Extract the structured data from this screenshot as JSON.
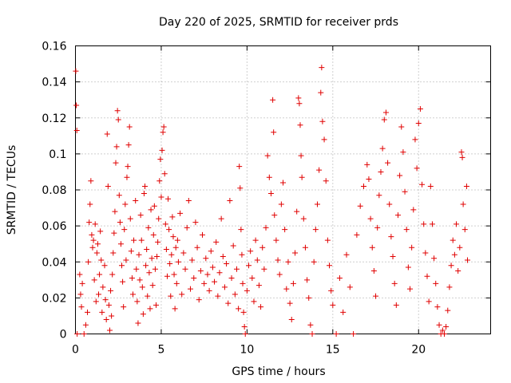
{
  "chart_data": {
    "type": "scatter",
    "title": "Day 220 of 2025, SRMTID for receiver prds",
    "xlabel": "GPS time / hours",
    "ylabel": "SRMTID / TECUs",
    "xlim": [
      0,
      24.2
    ],
    "ylim": [
      0,
      0.16
    ],
    "grid": true,
    "legend": "none",
    "x_ticks": [
      0,
      5,
      10,
      15,
      20
    ],
    "x_tick_labels": [
      "0",
      "5",
      "10",
      "15",
      "20"
    ],
    "y_ticks": [
      0,
      0.02,
      0.04,
      0.06,
      0.08,
      0.1,
      0.12,
      0.14,
      0.16
    ],
    "y_tick_labels": [
      "0",
      "0.02",
      "0.04",
      "0.06",
      "0.08",
      "0.1",
      "0.12",
      "0.14",
      "0.16"
    ],
    "series": [
      {
        "name": "SRMTID",
        "color": "#e00000",
        "marker": "plus",
        "points": [
          [
            0.02,
            0.146
          ],
          [
            0.05,
            0.127
          ],
          [
            0.08,
            0.113
          ],
          [
            0.1,
            0.0
          ],
          [
            0.25,
            0.033
          ],
          [
            0.3,
            0.022
          ],
          [
            0.35,
            0.015
          ],
          [
            0.4,
            0.028
          ],
          [
            0.5,
            0.0
          ],
          [
            0.6,
            0.005
          ],
          [
            0.7,
            0.012
          ],
          [
            0.75,
            0.04
          ],
          [
            0.8,
            0.062
          ],
          [
            0.85,
            0.072
          ],
          [
            0.9,
            0.085
          ],
          [
            0.95,
            0.055
          ],
          [
            1.0,
            0.048
          ],
          [
            1.05,
            0.052
          ],
          [
            1.1,
            0.03
          ],
          [
            1.15,
            0.061
          ],
          [
            1.2,
            0.018
          ],
          [
            1.25,
            0.045
          ],
          [
            1.3,
            0.05
          ],
          [
            1.35,
            0.022
          ],
          [
            1.4,
            0.033
          ],
          [
            1.45,
            0.057
          ],
          [
            1.5,
            0.041
          ],
          [
            1.55,
            0.012
          ],
          [
            1.6,
            0.026
          ],
          [
            1.7,
            0.038
          ],
          [
            1.75,
            0.019
          ],
          [
            1.8,
            0.008
          ],
          [
            1.85,
            0.111
          ],
          [
            1.9,
            0.082
          ],
          [
            1.95,
            0.016
          ],
          [
            2.0,
            0.002
          ],
          [
            2.05,
            0.024
          ],
          [
            2.1,
            0.01
          ],
          [
            2.15,
            0.033
          ],
          [
            2.2,
            0.045
          ],
          [
            2.25,
            0.056
          ],
          [
            2.3,
            0.068
          ],
          [
            2.35,
            0.095
          ],
          [
            2.4,
            0.104
          ],
          [
            2.45,
            0.124
          ],
          [
            2.5,
            0.119
          ],
          [
            2.55,
            0.077
          ],
          [
            2.6,
            0.062
          ],
          [
            2.65,
            0.05
          ],
          [
            2.7,
            0.038
          ],
          [
            2.75,
            0.029
          ],
          [
            2.8,
            0.015
          ],
          [
            2.85,
            0.058
          ],
          [
            2.9,
            0.072
          ],
          [
            2.95,
            0.041
          ],
          [
            3.0,
            0.087
          ],
          [
            3.05,
            0.093
          ],
          [
            3.1,
            0.105
          ],
          [
            3.15,
            0.115
          ],
          [
            3.2,
            0.064
          ],
          [
            3.25,
            0.046
          ],
          [
            3.3,
            0.031
          ],
          [
            3.35,
            0.022
          ],
          [
            3.4,
            0.052
          ],
          [
            3.5,
            0.074
          ],
          [
            3.55,
            0.036
          ],
          [
            3.6,
            0.018
          ],
          [
            3.65,
            0.006
          ],
          [
            3.7,
            0.044
          ],
          [
            3.75,
            0.03
          ],
          [
            3.8,
            0.066
          ],
          [
            3.85,
            0.052
          ],
          [
            3.9,
            0.026
          ],
          [
            3.95,
            0.011
          ],
          [
            4.0,
            0.078
          ],
          [
            4.05,
            0.082
          ],
          [
            4.1,
            0.038
          ],
          [
            4.15,
            0.047
          ],
          [
            4.2,
            0.021
          ],
          [
            4.25,
            0.059
          ],
          [
            4.3,
            0.034
          ],
          [
            4.35,
            0.014
          ],
          [
            4.4,
            0.069
          ],
          [
            4.45,
            0.042
          ],
          [
            4.5,
            0.027
          ],
          [
            4.55,
            0.055
          ],
          [
            4.6,
            0.071
          ],
          [
            4.65,
            0.036
          ],
          [
            4.7,
            0.016
          ],
          [
            4.75,
            0.043
          ],
          [
            4.8,
            0.051
          ],
          [
            4.85,
            0.064
          ],
          [
            4.9,
            0.085
          ],
          [
            4.95,
            0.097
          ],
          [
            5.0,
            0.076
          ],
          [
            5.05,
            0.102
          ],
          [
            5.1,
            0.112
          ],
          [
            5.15,
            0.115
          ],
          [
            5.2,
            0.089
          ],
          [
            5.25,
            0.061
          ],
          [
            5.3,
            0.047
          ],
          [
            5.35,
            0.032
          ],
          [
            5.4,
            0.075
          ],
          [
            5.45,
            0.058
          ],
          [
            5.5,
            0.039
          ],
          [
            5.55,
            0.021
          ],
          [
            5.6,
            0.044
          ],
          [
            5.65,
            0.065
          ],
          [
            5.7,
            0.054
          ],
          [
            5.75,
            0.033
          ],
          [
            5.8,
            0.014
          ],
          [
            5.85,
            0.048
          ],
          [
            5.9,
            0.028
          ],
          [
            5.95,
            0.052
          ],
          [
            6.0,
            0.04
          ],
          [
            6.1,
            0.067
          ],
          [
            6.2,
            0.022
          ],
          [
            6.3,
            0.045
          ],
          [
            6.4,
            0.036
          ],
          [
            6.5,
            0.059
          ],
          [
            6.6,
            0.074
          ],
          [
            6.7,
            0.025
          ],
          [
            6.8,
            0.041
          ],
          [
            6.9,
            0.031
          ],
          [
            7.0,
            0.062
          ],
          [
            7.1,
            0.048
          ],
          [
            7.2,
            0.019
          ],
          [
            7.3,
            0.035
          ],
          [
            7.4,
            0.055
          ],
          [
            7.5,
            0.028
          ],
          [
            7.6,
            0.042
          ],
          [
            7.7,
            0.033
          ],
          [
            7.8,
            0.024
          ],
          [
            7.9,
            0.046
          ],
          [
            8.0,
            0.037
          ],
          [
            8.1,
            0.029
          ],
          [
            8.2,
            0.051
          ],
          [
            8.3,
            0.021
          ],
          [
            8.4,
            0.034
          ],
          [
            8.5,
            0.064
          ],
          [
            8.6,
            0.043
          ],
          [
            8.7,
            0.026
          ],
          [
            8.8,
            0.039
          ],
          [
            8.9,
            0.017
          ],
          [
            9.0,
            0.074
          ],
          [
            9.1,
            0.031
          ],
          [
            9.2,
            0.049
          ],
          [
            9.3,
            0.022
          ],
          [
            9.4,
            0.036
          ],
          [
            9.5,
            0.014
          ],
          [
            9.55,
            0.093
          ],
          [
            9.6,
            0.081
          ],
          [
            9.65,
            0.058
          ],
          [
            9.7,
            0.044
          ],
          [
            9.75,
            0.028
          ],
          [
            9.8,
            0.012
          ],
          [
            9.85,
            0.004
          ],
          [
            9.9,
            0.0
          ],
          [
            10.0,
            0.024
          ],
          [
            10.1,
            0.038
          ],
          [
            10.2,
            0.046
          ],
          [
            10.3,
            0.031
          ],
          [
            10.4,
            0.018
          ],
          [
            10.5,
            0.052
          ],
          [
            10.6,
            0.041
          ],
          [
            10.7,
            0.027
          ],
          [
            10.8,
            0.015
          ],
          [
            10.9,
            0.048
          ],
          [
            11.0,
            0.036
          ],
          [
            11.1,
            0.059
          ],
          [
            11.2,
            0.099
          ],
          [
            11.3,
            0.087
          ],
          [
            11.4,
            0.078
          ],
          [
            11.5,
            0.13
          ],
          [
            11.55,
            0.112
          ],
          [
            11.6,
            0.066
          ],
          [
            11.7,
            0.052
          ],
          [
            11.8,
            0.041
          ],
          [
            11.9,
            0.033
          ],
          [
            12.0,
            0.072
          ],
          [
            12.1,
            0.084
          ],
          [
            12.2,
            0.058
          ],
          [
            12.3,
            0.025
          ],
          [
            12.4,
            0.04
          ],
          [
            12.5,
            0.017
          ],
          [
            12.6,
            0.008
          ],
          [
            12.7,
            0.028
          ],
          [
            12.8,
            0.045
          ],
          [
            12.9,
            0.068
          ],
          [
            13.0,
            0.131
          ],
          [
            13.05,
            0.128
          ],
          [
            13.1,
            0.116
          ],
          [
            13.15,
            0.099
          ],
          [
            13.2,
            0.087
          ],
          [
            13.3,
            0.064
          ],
          [
            13.4,
            0.048
          ],
          [
            13.5,
            0.03
          ],
          [
            13.6,
            0.02
          ],
          [
            13.7,
            0.005
          ],
          [
            13.8,
            0.0
          ],
          [
            13.9,
            0.04
          ],
          [
            14.0,
            0.058
          ],
          [
            14.1,
            0.072
          ],
          [
            14.2,
            0.091
          ],
          [
            14.3,
            0.134
          ],
          [
            14.35,
            0.148
          ],
          [
            14.4,
            0.118
          ],
          [
            14.5,
            0.108
          ],
          [
            14.6,
            0.085
          ],
          [
            14.7,
            0.052
          ],
          [
            14.8,
            0.038
          ],
          [
            14.9,
            0.024
          ],
          [
            15.0,
            0.016
          ],
          [
            15.2,
            0.0
          ],
          [
            15.4,
            0.031
          ],
          [
            15.6,
            0.012
          ],
          [
            15.8,
            0.044
          ],
          [
            16.0,
            0.026
          ],
          [
            16.2,
            0.0
          ],
          [
            16.4,
            0.055
          ],
          [
            16.6,
            0.071
          ],
          [
            16.8,
            0.082
          ],
          [
            17.0,
            0.094
          ],
          [
            17.1,
            0.086
          ],
          [
            17.2,
            0.064
          ],
          [
            17.3,
            0.048
          ],
          [
            17.4,
            0.035
          ],
          [
            17.5,
            0.021
          ],
          [
            17.6,
            0.059
          ],
          [
            17.7,
            0.077
          ],
          [
            17.8,
            0.09
          ],
          [
            17.9,
            0.103
          ],
          [
            18.0,
            0.119
          ],
          [
            18.1,
            0.123
          ],
          [
            18.2,
            0.095
          ],
          [
            18.3,
            0.072
          ],
          [
            18.4,
            0.054
          ],
          [
            18.5,
            0.043
          ],
          [
            18.6,
            0.028
          ],
          [
            18.7,
            0.016
          ],
          [
            18.8,
            0.066
          ],
          [
            18.9,
            0.088
          ],
          [
            19.0,
            0.115
          ],
          [
            19.1,
            0.101
          ],
          [
            19.2,
            0.079
          ],
          [
            19.3,
            0.058
          ],
          [
            19.4,
            0.037
          ],
          [
            19.5,
            0.025
          ],
          [
            19.6,
            0.048
          ],
          [
            19.7,
            0.069
          ],
          [
            19.8,
            0.108
          ],
          [
            19.9,
            0.092
          ],
          [
            20.0,
            0.117
          ],
          [
            20.1,
            0.125
          ],
          [
            20.2,
            0.083
          ],
          [
            20.3,
            0.061
          ],
          [
            20.4,
            0.045
          ],
          [
            20.5,
            0.032
          ],
          [
            20.6,
            0.018
          ],
          [
            20.7,
            0.082
          ],
          [
            20.8,
            0.061
          ],
          [
            20.9,
            0.042
          ],
          [
            21.0,
            0.028
          ],
          [
            21.1,
            0.015
          ],
          [
            21.2,
            0.005
          ],
          [
            21.3,
            0.0
          ],
          [
            21.4,
            0.002
          ],
          [
            21.5,
            0.0
          ],
          [
            21.6,
            0.004
          ],
          [
            21.7,
            0.013
          ],
          [
            21.8,
            0.026
          ],
          [
            21.9,
            0.038
          ],
          [
            22.0,
            0.052
          ],
          [
            22.1,
            0.044
          ],
          [
            22.2,
            0.061
          ],
          [
            22.3,
            0.035
          ],
          [
            22.4,
            0.048
          ],
          [
            22.5,
            0.101
          ],
          [
            22.55,
            0.098
          ],
          [
            22.6,
            0.072
          ],
          [
            22.7,
            0.058
          ],
          [
            22.8,
            0.082
          ],
          [
            22.85,
            0.041
          ]
        ]
      }
    ]
  }
}
